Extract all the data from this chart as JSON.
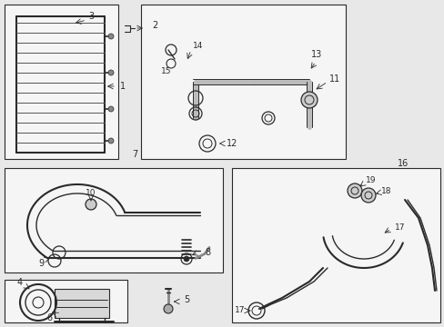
{
  "bg_color": "#e8e8e8",
  "line_color": "#2a2a2a",
  "box_fill": "#f5f5f5",
  "fig_w": 4.89,
  "fig_h": 3.6,
  "dpi": 100
}
